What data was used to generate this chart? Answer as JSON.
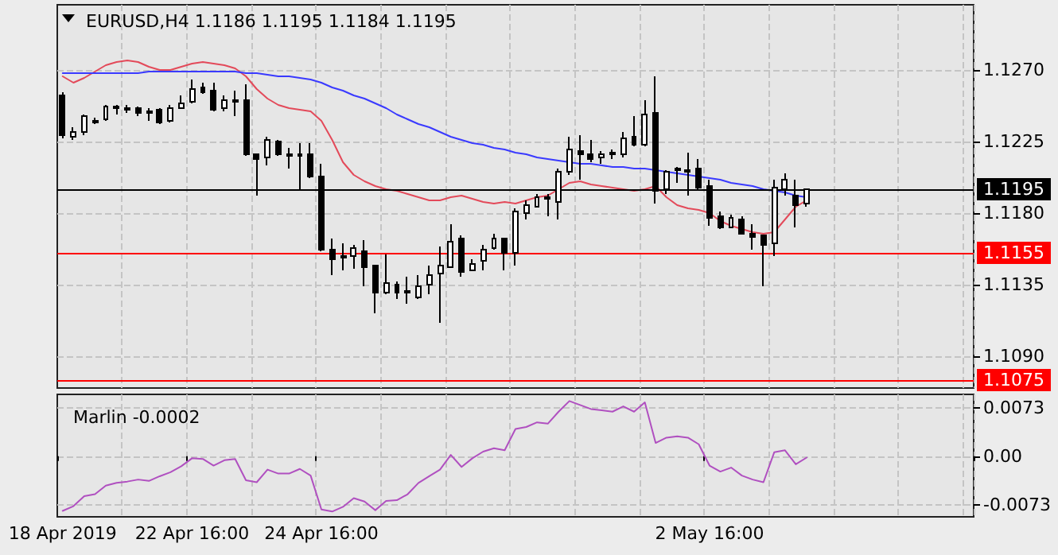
{
  "chart_data": [
    {
      "type": "candlestick",
      "title": "EURUSD,H4 1.1186 1.1195 1.1184 1.1195",
      "categories": [
        null,
        null,
        null,
        null,
        null,
        null,
        null,
        null,
        null,
        null,
        null,
        null,
        null,
        null,
        null,
        null,
        null,
        null,
        null,
        null,
        null,
        null,
        null,
        null,
        null,
        null,
        null,
        null,
        null,
        null,
        null,
        null,
        null,
        null,
        null,
        null,
        null,
        null,
        null,
        null,
        null,
        null,
        null,
        null,
        null,
        null,
        null,
        null,
        null,
        null,
        null,
        null,
        null,
        null,
        null,
        null,
        null,
        null,
        null,
        null,
        null,
        null,
        null,
        null,
        null,
        null,
        null,
        null,
        null,
        null,
        null,
        null,
        null,
        null,
        null,
        null,
        null,
        null,
        null,
        null,
        null,
        null,
        null,
        null,
        null
      ],
      "ohlc": [
        [
          1.1254,
          1.1256,
          1.1227,
          1.1229
        ],
        [
          1.1228,
          1.1234,
          1.1226,
          1.1231
        ],
        [
          1.1231,
          1.1242,
          1.1229,
          1.1241
        ],
        [
          1.1237,
          1.124,
          1.1236,
          1.1238
        ],
        [
          1.1239,
          1.1248,
          1.1238,
          1.1247
        ],
        [
          1.1246,
          1.1248,
          1.1242,
          1.1247
        ],
        [
          1.1246,
          1.1248,
          1.1243,
          1.1245
        ],
        [
          1.1246,
          1.1247,
          1.1241,
          1.1243
        ],
        [
          1.1244,
          1.1246,
          1.1238,
          1.1243
        ],
        [
          1.1245,
          1.1246,
          1.1236,
          1.1237
        ],
        [
          1.1238,
          1.1248,
          1.1237,
          1.1246
        ],
        [
          1.1246,
          1.1254,
          1.1246,
          1.1249
        ],
        [
          1.125,
          1.1264,
          1.1249,
          1.1258
        ],
        [
          1.1259,
          1.1262,
          1.1255,
          1.1256
        ],
        [
          1.1257,
          1.1262,
          1.1244,
          1.1245
        ],
        [
          1.1246,
          1.1254,
          1.1244,
          1.1251
        ],
        [
          1.1251,
          1.1257,
          1.1241,
          1.125
        ],
        [
          1.1251,
          1.1261,
          1.1216,
          1.1217
        ],
        [
          1.1217,
          1.1217,
          1.1191,
          1.1214
        ],
        [
          1.1215,
          1.1228,
          1.121,
          1.1226
        ],
        [
          1.1225,
          1.1226,
          1.1216,
          1.1217
        ],
        [
          1.1217,
          1.1221,
          1.1208,
          1.1216
        ],
        [
          1.1216,
          1.1224,
          1.1195,
          1.1217
        ],
        [
          1.1217,
          1.1224,
          1.1202,
          1.1203
        ],
        [
          1.1203,
          1.1211,
          1.1156,
          1.1157
        ],
        [
          1.1157,
          1.1164,
          1.1141,
          1.1151
        ],
        [
          1.1153,
          1.1161,
          1.1144,
          1.1152
        ],
        [
          1.1153,
          1.116,
          1.1145,
          1.1158
        ],
        [
          1.1156,
          1.1163,
          1.1134,
          1.1146
        ],
        [
          1.1147,
          1.1147,
          1.1117,
          1.113
        ],
        [
          1.113,
          1.1154,
          1.1129,
          1.1136
        ],
        [
          1.1135,
          1.1137,
          1.1126,
          1.113
        ],
        [
          1.113,
          1.114,
          1.1123,
          1.1131
        ],
        [
          1.1127,
          1.1141,
          1.1126,
          1.1134
        ],
        [
          1.1135,
          1.1147,
          1.1129,
          1.1141
        ],
        [
          1.1142,
          1.1159,
          1.1111,
          1.1147
        ],
        [
          1.1146,
          1.1173,
          1.1146,
          1.1162
        ],
        [
          1.1164,
          1.1166,
          1.114,
          1.1143
        ],
        [
          1.1144,
          1.1151,
          1.1144,
          1.1148
        ],
        [
          1.115,
          1.116,
          1.1144,
          1.1157
        ],
        [
          1.1158,
          1.1167,
          1.1157,
          1.1164
        ],
        [
          1.1164,
          1.1164,
          1.1144,
          1.1155
        ],
        [
          1.1155,
          1.1183,
          1.1147,
          1.1181
        ],
        [
          1.118,
          1.1188,
          1.1176,
          1.1185
        ],
        [
          1.1184,
          1.1192,
          1.1184,
          1.119
        ],
        [
          1.1189,
          1.1192,
          1.1178,
          1.119
        ],
        [
          1.1187,
          1.1208,
          1.1176,
          1.1206
        ],
        [
          1.1206,
          1.1228,
          1.1204,
          1.122
        ],
        [
          1.1219,
          1.1229,
          1.1201,
          1.1217
        ],
        [
          1.1217,
          1.1226,
          1.1212,
          1.1214
        ],
        [
          1.1215,
          1.1219,
          1.1211,
          1.1217
        ],
        [
          1.1217,
          1.122,
          1.1214,
          1.1218
        ],
        [
          1.1217,
          1.1231,
          1.1215,
          1.1227
        ],
        [
          1.1228,
          1.1241,
          1.1222,
          1.1223
        ],
        [
          1.1223,
          1.1251,
          1.1222,
          1.1242
        ],
        [
          1.1243,
          1.1266,
          1.1186,
          1.1194
        ],
        [
          1.1195,
          1.1207,
          1.1192,
          1.1206
        ],
        [
          1.1207,
          1.1209,
          1.1199,
          1.1208
        ],
        [
          1.1207,
          1.1218,
          1.1191,
          1.1206
        ],
        [
          1.1208,
          1.1214,
          1.1195,
          1.1196
        ],
        [
          1.1197,
          1.1201,
          1.1172,
          1.1177
        ],
        [
          1.1178,
          1.1181,
          1.117,
          1.1171
        ],
        [
          1.1171,
          1.1179,
          1.1171,
          1.1177
        ],
        [
          1.1176,
          1.1178,
          1.1167,
          1.1167
        ],
        [
          1.1167,
          1.1173,
          1.1157,
          1.1165
        ],
        [
          1.1166,
          1.1166,
          1.1134,
          1.116
        ],
        [
          1.1161,
          1.1201,
          1.1153,
          1.1196
        ],
        [
          1.1195,
          1.1205,
          1.1191,
          1.1201
        ],
        [
          1.1191,
          1.1201,
          1.1171,
          1.1185
        ],
        [
          1.1186,
          1.1195,
          1.1184,
          1.1195
        ],
        null,
        null,
        null,
        null,
        null,
        null,
        null,
        null,
        null,
        null,
        null,
        null,
        null,
        null,
        null
      ],
      "series": [
        {
          "type": "line",
          "color": "#e34a5a",
          "values": [
            1.1266,
            1.1262,
            1.1265,
            1.1269,
            1.1273,
            1.1275,
            1.1276,
            1.1275,
            1.1272,
            1.127,
            1.127,
            1.1272,
            1.1274,
            1.1275,
            1.1274,
            1.1273,
            1.1271,
            1.1266,
            1.1258,
            1.1252,
            1.1248,
            1.1246,
            1.1245,
            1.1244,
            1.1238,
            1.1226,
            1.1212,
            1.1204,
            1.12,
            1.1197,
            1.1195,
            1.1194,
            1.1192,
            1.119,
            1.1188,
            1.1188,
            1.119,
            1.1191,
            1.1189,
            1.1187,
            1.1186,
            1.1187,
            1.1186,
            1.1188,
            1.119,
            1.1191,
            1.1195,
            1.1199,
            1.12,
            1.1198,
            1.1197,
            1.1196,
            1.1195,
            1.1194,
            1.1195,
            1.1197,
            1.119,
            1.1185,
            1.1183,
            1.1182,
            1.118,
            1.1175,
            1.1172,
            1.117,
            1.1168,
            1.1167,
            1.1168,
            1.1176,
            1.1184,
            1.1188,
            null,
            null,
            null,
            null,
            null,
            null,
            null,
            null,
            null,
            null,
            null,
            null,
            null,
            null,
            null
          ]
        },
        {
          "type": "line",
          "color": "#3a3aff",
          "values": [
            1.1268,
            1.1268,
            1.1268,
            1.1268,
            1.1268,
            1.1268,
            1.1268,
            1.1268,
            1.1269,
            1.1269,
            1.1269,
            1.1269,
            1.1269,
            1.1269,
            1.1269,
            1.1269,
            1.1269,
            1.1268,
            1.1268,
            1.1267,
            1.1266,
            1.1266,
            1.1265,
            1.1264,
            1.1262,
            1.1259,
            1.1257,
            1.1254,
            1.1252,
            1.1249,
            1.1246,
            1.1242,
            1.1239,
            1.1236,
            1.1234,
            1.1231,
            1.1228,
            1.1226,
            1.1224,
            1.1223,
            1.1221,
            1.122,
            1.1218,
            1.1217,
            1.1215,
            1.1214,
            1.1213,
            1.1212,
            1.1211,
            1.1211,
            1.121,
            1.1209,
            1.1209,
            1.1208,
            1.1208,
            1.1207,
            1.1206,
            1.1205,
            1.1204,
            1.1203,
            1.1202,
            1.1201,
            1.1199,
            1.1198,
            1.1197,
            1.1195,
            1.1194,
            1.1193,
            1.1191,
            1.119,
            null,
            null,
            null,
            null,
            null,
            null,
            null,
            null,
            null,
            null,
            null,
            null,
            null,
            null,
            null
          ]
        }
      ],
      "ylim": [
        1.107,
        1.1311
      ],
      "yticks": [
        {
          "value": 1.109,
          "label": "1.1090"
        },
        {
          "value": 1.1135,
          "label": "1.1135"
        },
        {
          "value": 1.118,
          "label": "1.1180"
        },
        {
          "value": 1.1225,
          "label": "1.1225"
        },
        {
          "value": 1.127,
          "label": "1.1270"
        }
      ],
      "ref_lines": [
        {
          "axis": "y",
          "value": 1.1195,
          "label": "1.1195",
          "color": "#000000"
        },
        {
          "axis": "y",
          "value": 1.1155,
          "label": "1.1155",
          "color": "#ff0000"
        },
        {
          "axis": "y",
          "value": 1.1075,
          "label": "1.1075",
          "color": "#ff0000"
        }
      ],
      "grid": true,
      "tick_labels": "y",
      "marker": "none"
    },
    {
      "type": "line",
      "title": "Marlin -0.0002",
      "categories": [
        "18 Apr 2019",
        null,
        null,
        null,
        null,
        null,
        null,
        null,
        null,
        null,
        null,
        null,
        "22 Apr 16:00",
        null,
        null,
        null,
        null,
        null,
        null,
        null,
        null,
        null,
        null,
        null,
        "24 Apr 16:00",
        null,
        null,
        null,
        null,
        null,
        null,
        null,
        null,
        null,
        null,
        null,
        null,
        null,
        null,
        null,
        null,
        null,
        null,
        null,
        null,
        null,
        null,
        null,
        null,
        null,
        null,
        null,
        null,
        null,
        null,
        null,
        null,
        null,
        null,
        null,
        "2 May 16:00",
        null,
        null,
        null,
        null,
        null,
        null,
        null,
        null,
        null,
        null,
        null,
        null,
        null,
        null,
        null,
        null,
        null,
        null,
        null,
        null,
        null,
        null,
        null,
        null
      ],
      "series": [
        {
          "color": "#b050c0",
          "values": [
            -0.0082,
            -0.0075,
            -0.006,
            -0.0057,
            -0.0044,
            -0.004,
            -0.0038,
            -0.0035,
            -0.0037,
            -0.003,
            -0.0024,
            -0.0015,
            -0.0003,
            -0.0004,
            -0.0014,
            -0.0006,
            -0.0004,
            -0.0036,
            -0.0039,
            -0.002,
            -0.0026,
            -0.0026,
            -0.0019,
            -0.0029,
            -0.008,
            -0.0083,
            -0.0076,
            -0.0063,
            -0.0068,
            -0.0081,
            -0.0067,
            -0.0066,
            -0.0057,
            -0.004,
            -0.003,
            -0.002,
            0.0002,
            -0.0016,
            -0.0003,
            0.0007,
            0.0012,
            0.0009,
            0.0041,
            0.0044,
            0.0051,
            0.0049,
            0.0067,
            0.0083,
            0.0077,
            0.0071,
            0.0069,
            0.0067,
            0.0075,
            0.0067,
            0.0081,
            0.002,
            0.0028,
            0.003,
            0.0028,
            0.0018,
            -0.0014,
            -0.0023,
            -0.0017,
            -0.0029,
            -0.0035,
            -0.0039,
            0.0006,
            0.0009,
            -0.0012,
            -0.0002,
            null,
            null,
            null,
            null,
            null,
            null,
            null,
            null,
            null,
            null,
            null,
            null,
            null,
            null,
            null
          ]
        }
      ],
      "ylim": [
        -0.0091,
        0.0093
      ],
      "yticks": [
        {
          "value": -0.0073,
          "label": "-0.0073"
        },
        {
          "value": 0,
          "label": "0.00"
        },
        {
          "value": 0.0073,
          "label": "0.0073"
        }
      ],
      "grid": true,
      "marker": "none"
    }
  ]
}
